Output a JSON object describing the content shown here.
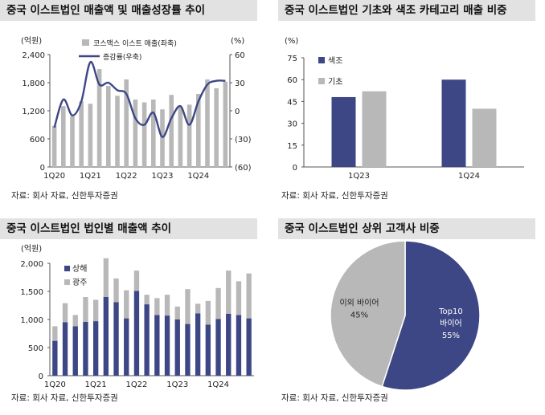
{
  "colors": {
    "bar_gray": "#b8b8b8",
    "navy": "#3d4785",
    "title_bg": "#e2e2e2"
  },
  "panels": [
    {
      "title": "중국 이스트법인 매출액 및 매출성장률 추이",
      "source": "자료: 회사 자료, 신한투자증권"
    },
    {
      "title": "중국 이스트법인 기초와 색조 카테고리 매출 비중",
      "source": "자료: 회사 자료, 신한투자증권"
    },
    {
      "title": "중국 이스트법인 법인별 매출액 추이",
      "source": "자료: 회사 자료, 신한투자증권"
    },
    {
      "title": "중국 이스트법인 상위 고객사 비중",
      "source": "자료: 회사 자료, 신한투자증권"
    }
  ],
  "chart_data": [
    {
      "type": "bar",
      "combo": "bar+line",
      "unit_left": "(억원)",
      "unit_right": "(%)",
      "x": [
        "1Q20",
        "2Q20",
        "3Q20",
        "4Q20",
        "1Q21",
        "2Q21",
        "3Q21",
        "4Q21",
        "1Q22",
        "2Q22",
        "3Q22",
        "4Q22",
        "1Q23",
        "2Q23",
        "3Q23",
        "4Q23",
        "1Q24",
        "2Q24",
        "3Q24",
        "4Q24"
      ],
      "x_tick_labels": [
        "1Q20",
        "1Q21",
        "1Q22",
        "1Q23",
        "1Q24"
      ],
      "series": [
        {
          "name": "코스맥스 이스트 매출(좌축)",
          "axis": "left",
          "kind": "bar",
          "values": [
            880,
            1300,
            1080,
            1400,
            1350,
            2090,
            1730,
            1520,
            1870,
            1440,
            1380,
            1440,
            1230,
            1540,
            1280,
            1330,
            1560,
            1870,
            1680,
            1820
          ]
        },
        {
          "name": "증감률(우축)",
          "axis": "right",
          "kind": "line",
          "values": [
            -18,
            12,
            -5,
            10,
            52,
            28,
            30,
            22,
            18,
            -8,
            -15,
            -2,
            -28,
            -8,
            5,
            -15,
            10,
            28,
            32,
            32
          ]
        }
      ],
      "left_ylim": [
        0,
        2400
      ],
      "left_ticks": [
        "0",
        "600",
        "1,200",
        "1,800",
        "2,400"
      ],
      "right_ylim": [
        -60,
        60
      ],
      "right_ticks": [
        "(60)",
        "(30)",
        "0",
        "30",
        "60"
      ]
    },
    {
      "type": "bar",
      "unit": "(%)",
      "categories": [
        "1Q23",
        "1Q24"
      ],
      "series": [
        {
          "name": "색조",
          "values": [
            48,
            60
          ]
        },
        {
          "name": "기초",
          "values": [
            52,
            40
          ]
        }
      ],
      "ylim": [
        0,
        75
      ],
      "y_ticks": [
        "0",
        "15",
        "30",
        "45",
        "60",
        "75"
      ]
    },
    {
      "type": "bar",
      "stacked": true,
      "unit": "(억원)",
      "x": [
        "1Q20",
        "2Q20",
        "3Q20",
        "4Q20",
        "1Q21",
        "2Q21",
        "3Q21",
        "4Q21",
        "1Q22",
        "2Q22",
        "3Q22",
        "4Q22",
        "1Q23",
        "2Q23",
        "3Q23",
        "4Q23",
        "1Q24",
        "2Q24",
        "3Q24",
        "4Q24"
      ],
      "x_tick_labels": [
        "1Q20",
        "1Q21",
        "1Q22",
        "1Q23",
        "1Q24"
      ],
      "series": [
        {
          "name": "상해",
          "values": [
            620,
            950,
            880,
            960,
            970,
            1400,
            1310,
            1020,
            1510,
            1270,
            1080,
            1070,
            1000,
            920,
            1110,
            910,
            1010,
            1100,
            1080,
            1020
          ]
        },
        {
          "name": "광주",
          "values": [
            260,
            340,
            200,
            440,
            380,
            690,
            420,
            500,
            360,
            170,
            300,
            370,
            230,
            620,
            170,
            420,
            550,
            770,
            600,
            800
          ]
        }
      ],
      "ylim": [
        0,
        2000
      ],
      "y_ticks": [
        "0",
        "500",
        "1,000",
        "1,500",
        "2,000"
      ]
    },
    {
      "type": "pie",
      "slices": [
        {
          "name": "Top10 바이어",
          "value": 55,
          "label_line1": "Top10",
          "label_line2": "바이어",
          "label_value": "55%"
        },
        {
          "name": "이외 바이어",
          "value": 45,
          "label_line1": "이외 바이어",
          "label_value": "45%"
        }
      ]
    }
  ]
}
